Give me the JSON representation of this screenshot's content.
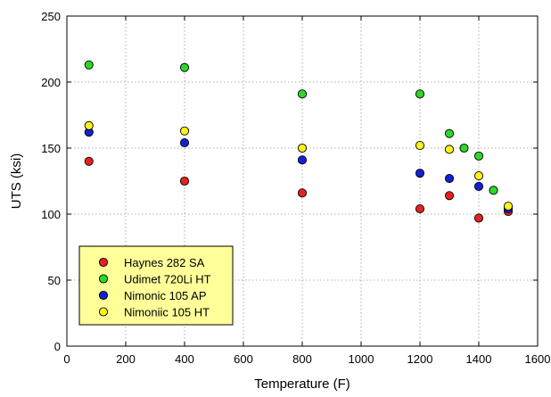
{
  "chart_data": {
    "type": "scatter",
    "title": "",
    "xlabel": "Temperature (F)",
    "ylabel": "UTS (ksi)",
    "xlim": [
      0,
      1600
    ],
    "ylim": [
      0,
      250
    ],
    "xticks": [
      0,
      200,
      400,
      600,
      800,
      1000,
      1200,
      1400,
      1600
    ],
    "yticks": [
      0,
      50,
      100,
      150,
      200,
      250
    ],
    "grid": true,
    "legend_position": "bottom-left",
    "series": [
      {
        "name": "Haynes 282 SA",
        "color": "#e8211d",
        "points": [
          [
            75,
            140
          ],
          [
            400,
            125
          ],
          [
            800,
            116
          ],
          [
            1200,
            104
          ],
          [
            1300,
            114
          ],
          [
            1400,
            97
          ],
          [
            1500,
            102
          ]
        ]
      },
      {
        "name": "Udimet 720Li HT",
        "color": "#2ed829",
        "points": [
          [
            75,
            213
          ],
          [
            400,
            211
          ],
          [
            800,
            191
          ],
          [
            1200,
            191
          ],
          [
            1300,
            161
          ],
          [
            1350,
            150
          ],
          [
            1400,
            144
          ],
          [
            1450,
            118
          ]
        ]
      },
      {
        "name": "Nimonic 105 AP",
        "color": "#1420d6",
        "points": [
          [
            75,
            162
          ],
          [
            400,
            154
          ],
          [
            800,
            141
          ],
          [
            1200,
            131
          ],
          [
            1300,
            127
          ],
          [
            1400,
            121
          ],
          [
            1500,
            104
          ]
        ]
      },
      {
        "name": "Nimoniic 105 HT",
        "color": "#fdf21a",
        "points": [
          [
            75,
            167
          ],
          [
            400,
            163
          ],
          [
            800,
            150
          ],
          [
            1200,
            152
          ],
          [
            1300,
            149
          ],
          [
            1400,
            129
          ],
          [
            1500,
            106
          ]
        ]
      }
    ]
  }
}
